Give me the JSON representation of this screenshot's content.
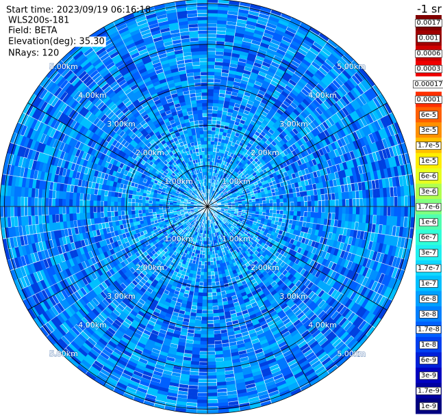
{
  "header": {
    "lines": [
      "Start time: 2023/09/19 06:16:18",
      "WLS200s-181",
      "Field: BETA",
      "Elevation(deg): 35.30",
      "NRays: 120"
    ]
  },
  "unit": "-1 sr",
  "range_rings": {
    "labels": [
      "1.00km",
      "2.00km",
      "3.00km",
      "4.00km",
      "5.00km"
    ]
  },
  "colorbar": {
    "labels": [
      "0.0017",
      "0.001",
      "0.0006",
      "0.0003",
      "0.00017",
      "0.0001",
      "6e-5",
      "3e-5",
      "1.7e-5",
      "1e-5",
      "6e-6",
      "3e-6",
      "1.7e-6",
      "1e-6",
      "6e-7",
      "3e-7",
      "1.7e-7",
      "1e-7",
      "6e-8",
      "3e-8",
      "1.7e-8",
      "1e-8",
      "6e-9",
      "3e-9",
      "1.7e-9",
      "1e-9"
    ]
  }
}
